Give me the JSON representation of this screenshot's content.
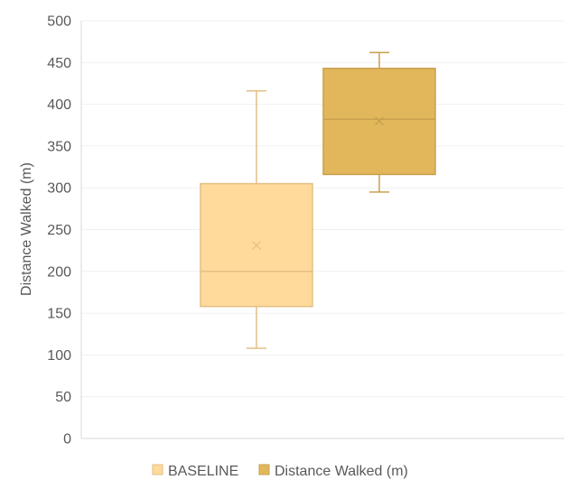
{
  "chart_data": {
    "type": "box",
    "ylabel": "Distance Walked (m)",
    "xlabel": "",
    "ylim": [
      0,
      500
    ],
    "yticks": [
      0,
      50,
      100,
      150,
      200,
      250,
      300,
      350,
      400,
      450,
      500
    ],
    "grid": true,
    "legend_position": "bottom",
    "series": [
      {
        "name": "BASELINE",
        "color": "#FFDA9A",
        "stroke": "#E3BF84",
        "min": 108,
        "q1": 158,
        "median": 200,
        "q3": 305,
        "max": 416,
        "mean": 231
      },
      {
        "name": "Distance Walked (m)",
        "color": "#E2B75C",
        "stroke": "#C8A04E",
        "min": 295,
        "q1": 316,
        "median": 382,
        "q3": 443,
        "max": 462,
        "mean": 380
      }
    ]
  }
}
